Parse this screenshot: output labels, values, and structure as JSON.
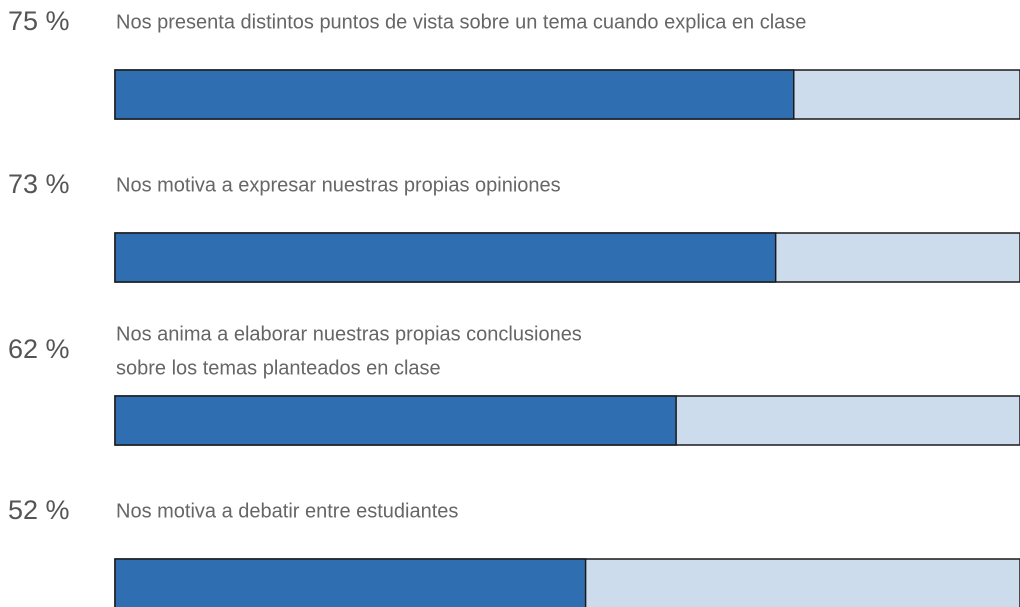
{
  "chart_data": {
    "type": "bar",
    "categories": [
      [
        "Nos presenta distintos puntos de vista sobre un tema cuando explica en clase"
      ],
      [
        "Nos motiva a expresar nuestras propias opiniones"
      ],
      [
        "Nos anima a elaborar nuestras propias conclusiones",
        "sobre los temas planteados en clase"
      ],
      [
        "Nos motiva a debatir entre estudiantes"
      ]
    ],
    "values": [
      75,
      73,
      62,
      52
    ],
    "value_labels": [
      "75 %",
      "73 %",
      "62 %",
      "52 %"
    ],
    "color": "#2f6eb1",
    "track_color": "#cddcec",
    "xlim": [
      0,
      100
    ]
  }
}
